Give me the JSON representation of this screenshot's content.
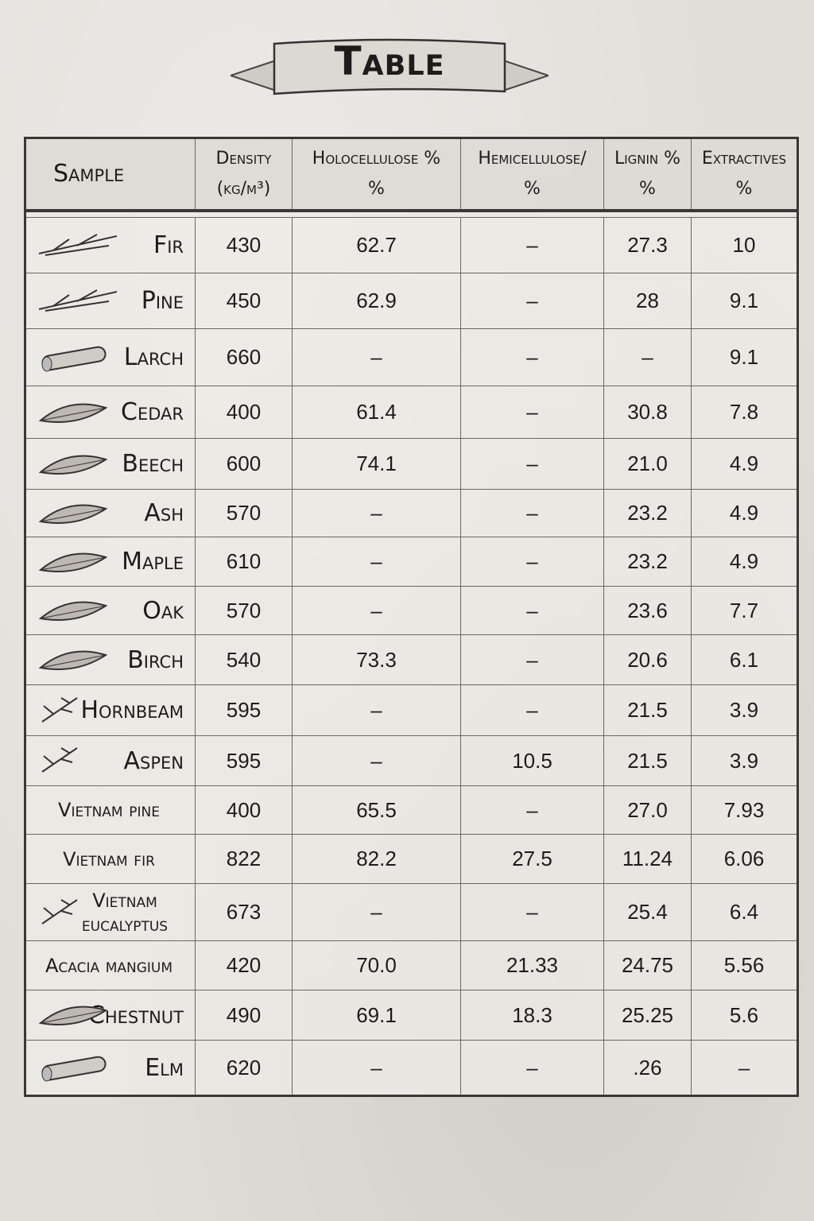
{
  "title": "Table",
  "columns": [
    {
      "line1": "Sample",
      "line2": ""
    },
    {
      "line1": "Density",
      "line2": "(kg/m³)"
    },
    {
      "line1": "Holocellulose %",
      "line2": "%"
    },
    {
      "line1": "Hemicellulose/",
      "line2": "%"
    },
    {
      "line1": "Lignin %",
      "line2": "%"
    },
    {
      "line1": "Extractives",
      "line2": "%"
    }
  ],
  "rows": [
    {
      "sample": "Fir",
      "icon": "twig-icon",
      "density": "430",
      "holocellulose": "62.7",
      "hemicellulose": "–",
      "lignin": "27.3",
      "extractives": "10"
    },
    {
      "sample": "Pine",
      "icon": "twig-icon",
      "density": "450",
      "holocellulose": "62.9",
      "hemicellulose": "–",
      "lignin": "28",
      "extractives": "9.1"
    },
    {
      "sample": "Larch",
      "icon": "log-icon",
      "density": "660",
      "holocellulose": "–",
      "hemicellulose": "–",
      "lignin": "–",
      "extractives": "9.1"
    },
    {
      "sample": "Cedar",
      "icon": "leaf-icon",
      "density": "400",
      "holocellulose": "61.4",
      "hemicellulose": "–",
      "lignin": "30.8",
      "extractives": "7.8"
    },
    {
      "sample": "Beech",
      "icon": "leaf-icon",
      "density": "600",
      "holocellulose": "74.1",
      "hemicellulose": "–",
      "lignin": "21.0",
      "extractives": "4.9"
    },
    {
      "sample": "Ash",
      "icon": "leaf-icon",
      "density": "570",
      "holocellulose": "–",
      "hemicellulose": "–",
      "lignin": "23.2",
      "extractives": "4.9"
    },
    {
      "sample": "Maple",
      "icon": "leaf-icon",
      "density": "610",
      "holocellulose": "–",
      "hemicellulose": "–",
      "lignin": "23.2",
      "extractives": "4.9"
    },
    {
      "sample": "Oak",
      "icon": "leaf-icon",
      "density": "570",
      "holocellulose": "–",
      "hemicellulose": "–",
      "lignin": "23.6",
      "extractives": "7.7"
    },
    {
      "sample": "Birch",
      "icon": "leaf-icon",
      "density": "540",
      "holocellulose": "73.3",
      "hemicellulose": "–",
      "lignin": "20.6",
      "extractives": "6.1"
    },
    {
      "sample": "Hornbeam",
      "icon": "branch-icon",
      "density": "595",
      "holocellulose": "–",
      "hemicellulose": "–",
      "lignin": "21.5",
      "extractives": "3.9"
    },
    {
      "sample": "Aspen",
      "icon": "branch-icon",
      "density": "595",
      "holocellulose": "–",
      "hemicellulose": "10.5",
      "lignin": "21.5",
      "extractives": "3.9"
    },
    {
      "sample": "Vietnam pine",
      "icon": "",
      "density": "400",
      "holocellulose": "65.5",
      "hemicellulose": "–",
      "lignin": "27.0",
      "extractives": "7.93"
    },
    {
      "sample": "Vietnam fir",
      "icon": "",
      "density": "822",
      "holocellulose": "82.2",
      "hemicellulose": "27.5",
      "lignin": "11.24",
      "extractives": "6.06"
    },
    {
      "sample": "Vietnam eucalyptus",
      "icon": "branch-icon",
      "density": "673",
      "holocellulose": "–",
      "hemicellulose": "–",
      "lignin": "25.4",
      "extractives": "6.4"
    },
    {
      "sample": "Acacia mangium",
      "icon": "",
      "density": "420",
      "holocellulose": "70.0",
      "hemicellulose": "21.33",
      "lignin": "24.75",
      "extractives": "5.56"
    },
    {
      "sample": "Chestnut",
      "icon": "leaf-icon",
      "density": "490",
      "holocellulose": "69.1",
      "hemicellulose": "18.3",
      "lignin": "25.25",
      "extractives": "5.6"
    },
    {
      "sample": "Elm",
      "icon": "log-icon",
      "density": "620",
      "holocellulose": "–",
      "hemicellulose": "–",
      "lignin": ".26",
      "extractives": "–"
    }
  ]
}
